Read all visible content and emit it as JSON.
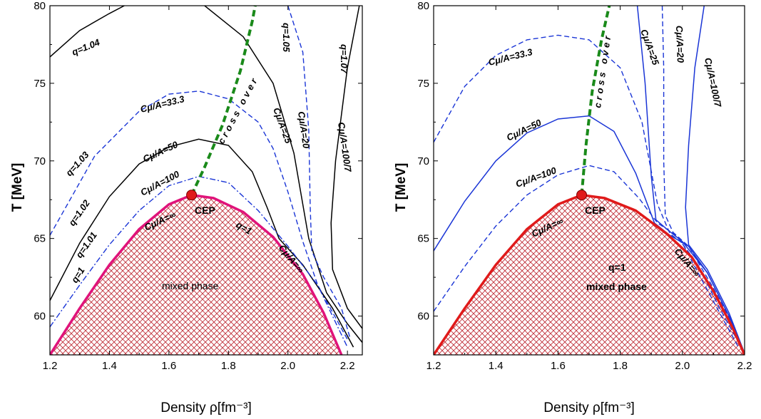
{
  "chart_data": [
    {
      "type": "line",
      "panel": "left",
      "xlabel": "Density ρ[fm⁻³]",
      "ylabel": "T [MeV]",
      "xlim": [
        1.2,
        2.25
      ],
      "ylim": [
        57.5,
        80
      ],
      "xticks": [
        "1.2",
        "1.4",
        "1.6",
        "1.8",
        "2.0",
        "2.2"
      ],
      "yticks": [
        "60",
        "65",
        "70",
        "75",
        "80"
      ],
      "colors": {
        "solid": "#000000",
        "dashed": "#1a35d6",
        "crossover": "#1a8a1a",
        "boundary": "#e0137a",
        "fill": "#c0303a",
        "cep": "#e01a1a"
      },
      "series": [
        {
          "name": "q=1.04",
          "style": "solid",
          "color": "#000000",
          "points": [
            [
              1.2,
              76.7
            ],
            [
              1.3,
              78.4
            ],
            [
              1.4,
              79.5
            ],
            [
              1.45,
              80.0
            ]
          ]
        },
        {
          "name": "q=1.05",
          "style": "solid",
          "color": "#000000",
          "points": [
            [
              1.72,
              80.0
            ],
            [
              1.85,
              78.0
            ],
            [
              1.95,
              75.0
            ],
            [
              2.02,
              70.5
            ],
            [
              2.07,
              65.0
            ],
            [
              2.13,
              61.5
            ],
            [
              2.2,
              59.5
            ],
            [
              2.25,
              58.3
            ]
          ]
        },
        {
          "name": "q=1.07",
          "style": "solid",
          "color": "#000000",
          "points": [
            [
              2.24,
              80.0
            ],
            [
              2.2,
              76.0
            ],
            [
              2.16,
              70.0
            ],
            [
              2.145,
              66.0
            ],
            [
              2.15,
              63.0
            ],
            [
              2.2,
              60.5
            ],
            [
              2.25,
              59.2
            ]
          ]
        },
        {
          "name": "q=1.03",
          "style": "dashed",
          "color": "#1a35d6",
          "points": [
            [
              1.2,
              65.2
            ],
            [
              1.35,
              70.3
            ],
            [
              1.5,
              73.2
            ],
            [
              1.6,
              74.3
            ],
            [
              1.7,
              74.5
            ],
            [
              1.8,
              74.0
            ],
            [
              1.9,
              72.5
            ],
            [
              1.95,
              70.8
            ],
            [
              2.0,
              68.0
            ],
            [
              2.05,
              64.8
            ],
            [
              2.1,
              62.0
            ],
            [
              2.2,
              58.5
            ]
          ]
        },
        {
          "name": "q=1.02",
          "style": "solid",
          "color": "#000000",
          "points": [
            [
              1.2,
              61.0
            ],
            [
              1.3,
              64.7
            ],
            [
              1.4,
              67.7
            ],
            [
              1.5,
              69.8
            ],
            [
              1.6,
              70.9
            ],
            [
              1.7,
              71.4
            ],
            [
              1.8,
              71.0
            ],
            [
              1.88,
              69.3
            ],
            [
              1.93,
              67.0
            ],
            [
              1.97,
              65.0
            ],
            [
              2.05,
              63.3
            ],
            [
              2.15,
              60.5
            ],
            [
              2.22,
              58.0
            ]
          ]
        },
        {
          "name": "q=1.01",
          "style": "dashdot",
          "color": "#1a35d6",
          "points": [
            [
              1.2,
              59.3
            ],
            [
              1.3,
              62.0
            ],
            [
              1.4,
              64.6
            ],
            [
              1.5,
              66.8
            ],
            [
              1.6,
              68.4
            ],
            [
              1.7,
              69.0
            ],
            [
              1.8,
              68.6
            ],
            [
              1.9,
              66.8
            ],
            [
              2.0,
              64.5
            ],
            [
              2.1,
              62.0
            ],
            [
              2.2,
              58.0
            ]
          ]
        },
        {
          "name": "Cμ/A=20",
          "style": "dashed",
          "color": "#1a35d6",
          "points": [
            [
              2.0,
              80.0
            ],
            [
              2.05,
              77.0
            ],
            [
              2.07,
              72.0
            ],
            [
              2.075,
              67.0
            ],
            [
              2.08,
              64.2
            ],
            [
              2.12,
              62.5
            ],
            [
              2.18,
              60.5
            ],
            [
              2.21,
              58.5
            ]
          ]
        },
        {
          "name": "q=1",
          "style": "solid",
          "color": "#e0137a",
          "points": [
            [
              1.2,
              57.5
            ],
            [
              1.3,
              60.5
            ],
            [
              1.4,
              63.3
            ],
            [
              1.5,
              65.6
            ],
            [
              1.6,
              67.2
            ],
            [
              1.676,
              67.8
            ],
            [
              1.75,
              67.6
            ],
            [
              1.85,
              66.7
            ],
            [
              1.95,
              65.1
            ],
            [
              2.05,
              62.7
            ],
            [
              2.12,
              60.2
            ],
            [
              2.18,
              57.5
            ]
          ]
        },
        {
          "name": "crossover",
          "style": "dashed",
          "color": "#1a8a1a",
          "points": [
            [
              1.676,
              67.8
            ],
            [
              1.72,
              69.6
            ],
            [
              1.78,
              72.3
            ],
            [
              1.84,
              75.8
            ],
            [
              1.88,
              79.0
            ],
            [
              1.89,
              80.0
            ]
          ]
        }
      ],
      "cep": {
        "x": 1.676,
        "y": 67.8
      },
      "annotations": [
        "q=1.04",
        "q=1.05",
        "q=1.07",
        "q=1.03",
        "q=1.02",
        "q=1.01",
        "q=1",
        "q=1",
        "Cμ/A=33.3",
        "Cμ/A=50",
        "Cμ/A=100",
        "Cμ/A=∞",
        "Cμ/A=25",
        "Cμ/A=20",
        "Cμ/A=100/7",
        "Cμ/A=∞",
        "CEP",
        "mixed phase",
        "cross over"
      ]
    },
    {
      "type": "line",
      "panel": "right",
      "xlabel": "Density ρ[fm⁻³]",
      "ylabel": "T [MeV]",
      "xlim": [
        1.2,
        2.2
      ],
      "ylim": [
        57.5,
        80
      ],
      "xticks": [
        "1.2",
        "1.4",
        "1.6",
        "1.8",
        "2.0",
        "2.2"
      ],
      "yticks": [
        "60",
        "65",
        "70",
        "75",
        "80"
      ],
      "colors": {
        "solid": "#1a35d6",
        "dashed": "#1a35d6",
        "crossover": "#1a8a1a",
        "boundary": "#e01a1a",
        "fill": "#c0303a",
        "cep": "#e01a1a"
      },
      "series": [
        {
          "name": "Cμ/A=33.3",
          "style": "dashed",
          "color": "#1a35d6",
          "points": [
            [
              1.2,
              71.2
            ],
            [
              1.3,
              74.8
            ],
            [
              1.4,
              76.8
            ],
            [
              1.5,
              77.8
            ],
            [
              1.6,
              78.1
            ],
            [
              1.7,
              77.8
            ],
            [
              1.8,
              76.0
            ],
            [
              1.87,
              72.5
            ],
            [
              1.92,
              67.2
            ],
            [
              1.96,
              65.3
            ],
            [
              2.0,
              64.7
            ],
            [
              2.05,
              62.8
            ],
            [
              2.12,
              60.2
            ],
            [
              2.18,
              58.0
            ]
          ]
        },
        {
          "name": "Cμ/A=50",
          "style": "solid",
          "color": "#1a35d6",
          "points": [
            [
              1.2,
              64.2
            ],
            [
              1.3,
              67.4
            ],
            [
              1.4,
              70.0
            ],
            [
              1.5,
              71.8
            ],
            [
              1.6,
              72.7
            ],
            [
              1.7,
              72.9
            ],
            [
              1.78,
              71.9
            ],
            [
              1.85,
              69.2
            ],
            [
              1.91,
              66.0
            ],
            [
              1.96,
              65.2
            ],
            [
              2.02,
              64.5
            ],
            [
              2.08,
              62.8
            ],
            [
              2.15,
              60.0
            ],
            [
              2.2,
              57.6
            ]
          ]
        },
        {
          "name": "Cμ/A=100",
          "style": "dashed",
          "color": "#1a35d6",
          "points": [
            [
              1.2,
              60.3
            ],
            [
              1.3,
              63.2
            ],
            [
              1.4,
              65.8
            ],
            [
              1.5,
              67.8
            ],
            [
              1.6,
              69.1
            ],
            [
              1.7,
              69.7
            ],
            [
              1.78,
              69.3
            ],
            [
              1.86,
              67.6
            ],
            [
              1.92,
              66.0
            ],
            [
              1.98,
              65.2
            ],
            [
              2.05,
              63.3
            ],
            [
              2.12,
              60.5
            ],
            [
              2.2,
              57.6
            ]
          ]
        },
        {
          "name": "Cμ/A=25",
          "style": "solid",
          "color": "#1a35d6",
          "points": [
            [
              1.855,
              80.0
            ],
            [
              1.88,
              75.0
            ],
            [
              1.9,
              69.0
            ],
            [
              1.915,
              66.2
            ],
            [
              1.95,
              65.6
            ],
            [
              2.0,
              64.8
            ],
            [
              2.08,
              62.8
            ],
            [
              2.15,
              60.0
            ],
            [
              2.2,
              57.6
            ]
          ]
        },
        {
          "name": "Cμ/A=20",
          "style": "dashed",
          "color": "#1a35d6",
          "points": [
            [
              1.935,
              80.0
            ],
            [
              1.94,
              76.0
            ],
            [
              1.94,
              70.0
            ],
            [
              1.945,
              66.5
            ],
            [
              1.97,
              65.4
            ],
            [
              2.02,
              64.5
            ],
            [
              2.1,
              61.8
            ],
            [
              2.16,
              59.5
            ],
            [
              2.2,
              57.6
            ]
          ]
        },
        {
          "name": "Cμ/A=100/7",
          "style": "solid",
          "color": "#1a35d6",
          "points": [
            [
              2.07,
              80.0
            ],
            [
              2.04,
              76.0
            ],
            [
              2.02,
              71.0
            ],
            [
              2.01,
              67.0
            ],
            [
              2.02,
              64.6
            ],
            [
              2.08,
              63.0
            ],
            [
              2.15,
              60.2
            ],
            [
              2.2,
              57.6
            ]
          ]
        },
        {
          "name": "q=1",
          "style": "solid",
          "color": "#e01a1a",
          "points": [
            [
              1.2,
              57.5
            ],
            [
              1.3,
              60.5
            ],
            [
              1.4,
              63.3
            ],
            [
              1.5,
              65.6
            ],
            [
              1.6,
              67.2
            ],
            [
              1.676,
              67.8
            ],
            [
              1.75,
              67.6
            ],
            [
              1.85,
              66.8
            ],
            [
              1.95,
              65.3
            ],
            [
              2.03,
              63.8
            ],
            [
              2.1,
              61.6
            ],
            [
              2.16,
              59.3
            ],
            [
              2.2,
              57.5
            ]
          ]
        },
        {
          "name": "crossover",
          "style": "dashed",
          "color": "#1a8a1a",
          "points": [
            [
              1.676,
              67.8
            ],
            [
              1.69,
              71.0
            ],
            [
              1.71,
              74.5
            ],
            [
              1.74,
              77.8
            ],
            [
              1.765,
              80.0
            ]
          ]
        }
      ],
      "cep": {
        "x": 1.676,
        "y": 67.8
      },
      "annotations": [
        "Cμ/A=33.3",
        "Cμ/A=50",
        "Cμ/A=100",
        "Cμ/A=∞",
        "Cμ/A=25",
        "Cμ/A=20",
        "Cμ/A=100/7",
        "Cμ/A=∞",
        "CEP",
        "q=1",
        "mixed phase",
        "cross over"
      ]
    }
  ]
}
